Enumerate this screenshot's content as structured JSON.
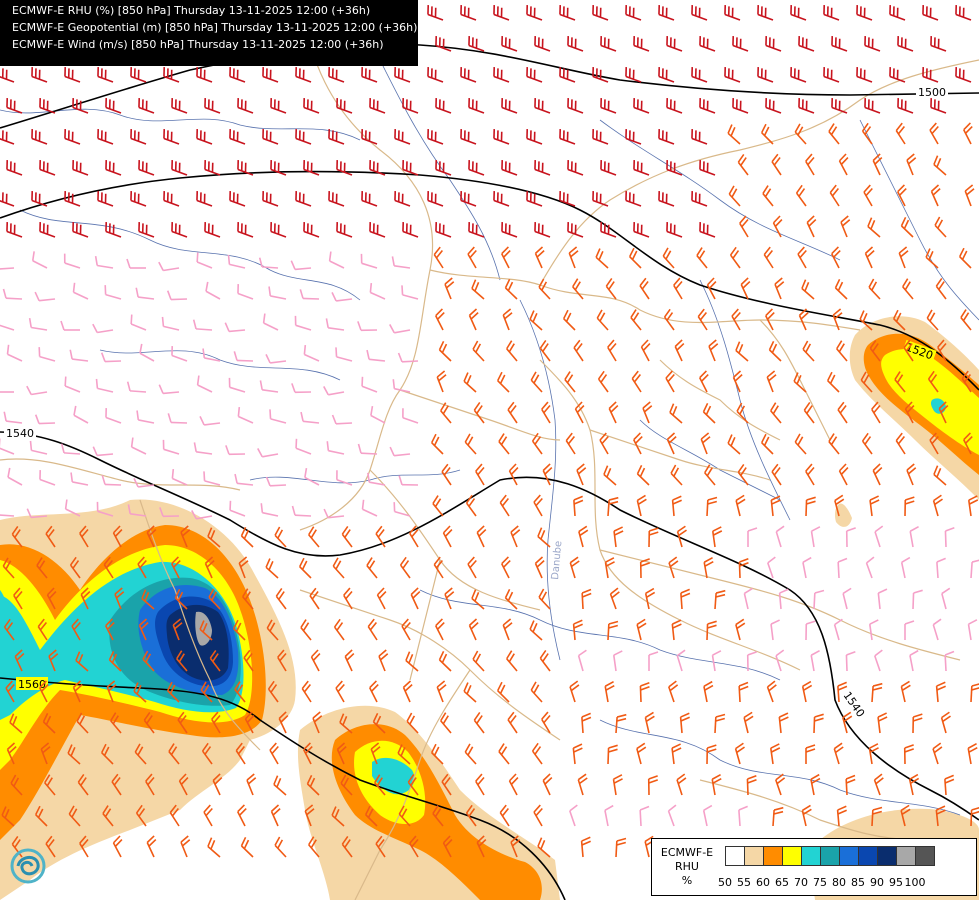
{
  "header": {
    "lines": [
      "ECMWF-E RHU (%) [850 hPa] Thursday 13-11-2025 12:00 (+36h)",
      "ECMWF-E Geopotential (m) [850 hPa] Thursday 13-11-2025 12:00 (+36h)",
      "ECMWF-E Wind (m/s) [850 hPa] Thursday 13-11-2025 12:00 (+36h)"
    ]
  },
  "contours": {
    "labels": [
      "1500",
      "1520",
      "1540",
      "1540",
      "1560"
    ]
  },
  "river_label": "Danube",
  "legend": {
    "title_lines": [
      "ECMWF-E",
      "RHU",
      "%"
    ],
    "levels": [
      "50",
      "55",
      "60",
      "65",
      "70",
      "75",
      "80",
      "85",
      "90",
      "95",
      "100"
    ],
    "colors": [
      "#ffffff",
      "#f5d7a6",
      "#ff8c00",
      "#ffff00",
      "#22d3d3",
      "#1aa3aa",
      "#1a6fd8",
      "#0a47b0",
      "#0a2d6e",
      "#a8a8a8",
      "#555555"
    ]
  },
  "colors": {
    "wind_strong": "#c8141e",
    "wind_medium": "#f05a14",
    "wind_light": "#f5a0c8",
    "borders": "#d9b98a",
    "rivers": "#3c5aa0",
    "contour": "#000000"
  }
}
